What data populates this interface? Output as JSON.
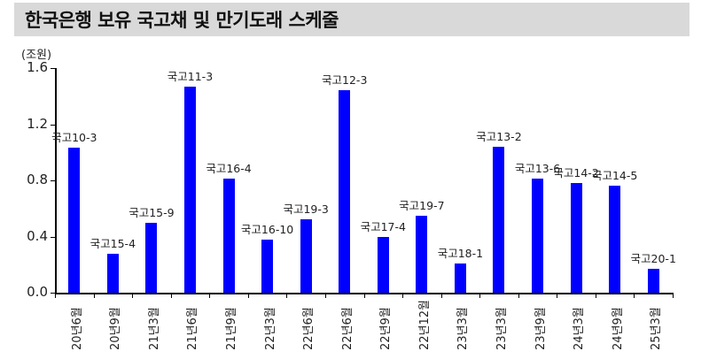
{
  "title": "한국은행 보유 국고채 및 만기도래 스케줄",
  "unit": "(조원)",
  "colors": {
    "bar": "#0000ff",
    "title_bg": "#d9d9d9"
  },
  "chart_data": {
    "type": "bar",
    "title": "한국은행 보유 국고채 및 만기도래 스케줄",
    "ylabel": "(조원)",
    "xlabel": "",
    "ylim": [
      0,
      1.6
    ],
    "yticks": [
      "0.0",
      "0.4",
      "0.8",
      "1.2",
      "1.6"
    ],
    "grid": false,
    "legend": null,
    "categories": [
      "20년6월",
      "20년9월",
      "21년3월",
      "21년6월",
      "21년9월",
      "22년3월",
      "22년6월",
      "22년6월",
      "22년9월",
      "22년12월",
      "23년3월",
      "23년3월",
      "23년9월",
      "24년3월",
      "24년9월",
      "25년3월"
    ],
    "bond_labels": [
      "국고10-3",
      "국고15-4",
      "국고15-9",
      "국고11-3",
      "국고16-4",
      "국고16-10",
      "국고19-3",
      "국고12-3",
      "국고17-4",
      "국고19-7",
      "국고18-1",
      "국고13-2",
      "국고13-6",
      "국고14-2",
      "국고14-5",
      "국고20-1"
    ],
    "values": [
      1.03,
      0.28,
      0.5,
      1.47,
      0.81,
      0.38,
      0.52,
      1.44,
      0.4,
      0.55,
      0.21,
      1.04,
      0.81,
      0.78,
      0.76,
      0.17
    ]
  }
}
